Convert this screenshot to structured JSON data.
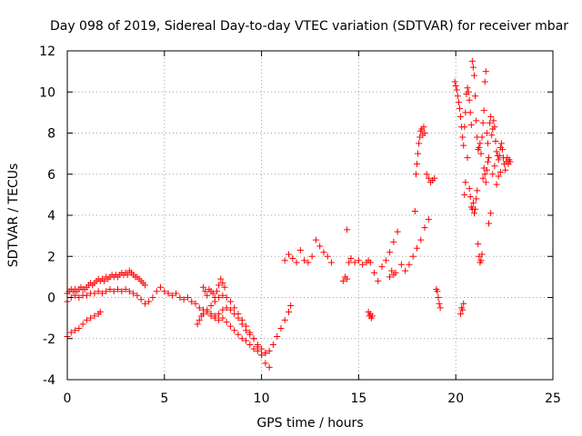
{
  "chart_data": {
    "type": "scatter",
    "title": "Day 098 of 2019, Sidereal Day-to-day VTEC variation (SDTVAR) for receiver mbar",
    "xlabel": "GPS time / hours",
    "ylabel": "SDTVAR / TECUs",
    "xlim": [
      0,
      25
    ],
    "ylim": [
      -4,
      12
    ],
    "xticks": [
      "0",
      "5",
      "10",
      "15",
      "20",
      "25"
    ],
    "yticks": [
      "-4",
      "-2",
      "0",
      "2",
      "4",
      "6",
      "8",
      "10",
      "12"
    ],
    "grid": true,
    "marker": "+",
    "color": "#ff0000",
    "series": [
      {
        "name": "SDTVAR",
        "x": [
          0.0,
          0.1,
          0.2,
          0.3,
          0.4,
          0.5,
          0.6,
          0.7,
          0.8,
          0.9,
          1.0,
          1.1,
          1.2,
          1.3,
          1.4,
          1.5,
          1.6,
          1.7,
          1.8,
          1.9,
          2.0,
          2.1,
          2.2,
          2.3,
          2.4,
          2.5,
          2.6,
          2.7,
          2.8,
          2.9,
          3.0,
          3.1,
          3.2,
          3.3,
          3.4,
          3.5,
          3.6,
          3.7,
          3.8,
          3.9,
          4.0,
          0.0,
          0.2,
          0.4,
          0.6,
          0.8,
          1.0,
          1.2,
          1.4,
          1.6,
          1.8,
          2.0,
          2.2,
          2.4,
          2.6,
          2.8,
          3.0,
          3.2,
          3.4,
          3.6,
          3.8,
          4.0,
          4.2,
          4.4,
          4.6,
          4.8,
          5.0,
          5.2,
          5.4,
          5.6,
          5.8,
          6.0,
          6.2,
          6.4,
          6.6,
          6.8,
          7.0,
          7.2,
          7.4,
          7.6,
          7.8,
          8.0,
          8.2,
          8.4,
          8.6,
          8.8,
          9.0,
          9.2,
          9.4,
          9.6,
          9.8,
          10.0,
          10.2,
          0.0,
          0.2,
          0.4,
          0.6,
          0.8,
          1.0,
          1.2,
          1.4,
          1.6,
          1.7,
          6.7,
          6.8,
          6.9,
          7.0,
          7.2,
          7.4,
          7.6,
          7.8,
          8.0,
          8.2,
          8.4,
          8.6,
          8.8,
          9.0,
          9.2,
          9.4,
          9.6,
          9.8,
          10.0,
          10.2,
          10.4,
          7.4,
          7.6,
          7.8,
          8.0,
          8.2,
          8.4,
          8.6,
          8.8,
          9.0,
          9.2,
          9.4,
          9.6,
          9.8,
          10.0,
          10.2,
          10.4,
          10.6,
          10.8,
          11.0,
          11.2,
          11.4,
          11.5,
          7.0,
          7.1,
          7.2,
          7.3,
          7.4,
          7.5,
          7.6,
          7.7,
          7.8,
          7.9,
          8.0,
          8.1,
          11.2,
          11.4,
          11.6,
          11.8,
          12.0,
          12.2,
          12.4,
          12.6,
          12.8,
          13.0,
          13.2,
          13.4,
          13.6,
          14.2,
          14.3,
          14.4,
          14.5,
          14.6,
          14.8,
          15.0,
          15.2,
          15.4,
          15.5,
          15.6,
          15.8,
          16.0,
          16.2,
          16.4,
          16.6,
          16.8,
          17.0,
          17.2,
          17.4,
          17.6,
          17.8,
          18.0,
          18.2,
          18.4,
          18.6,
          14.4,
          15.5,
          15.55,
          15.6,
          15.65,
          15.7,
          16.6,
          16.7,
          16.8,
          16.9,
          17.9,
          17.95,
          18.0,
          18.05,
          18.1,
          18.15,
          18.2,
          18.25,
          18.3,
          18.35,
          18.4,
          18.5,
          18.6,
          18.7,
          18.8,
          18.9,
          19.0,
          19.05,
          19.1,
          19.15,
          19.2,
          19.95,
          20.0,
          20.05,
          20.1,
          20.15,
          20.2,
          20.25,
          20.3,
          20.35,
          20.4,
          20.45,
          20.5,
          20.55,
          20.6,
          20.65,
          20.7,
          20.75,
          20.8,
          20.85,
          20.9,
          20.95,
          21.0,
          21.05,
          21.1,
          21.15,
          21.2,
          21.25,
          21.3,
          21.35,
          21.4,
          21.45,
          21.5,
          21.55,
          21.6,
          21.65,
          21.7,
          21.75,
          21.8,
          21.85,
          21.9,
          21.95,
          22.0,
          22.05,
          22.1,
          22.15,
          22.2,
          22.25,
          22.3,
          22.35,
          22.4,
          22.45,
          22.5,
          22.55,
          22.6,
          22.65,
          22.7,
          22.75,
          22.8,
          20.25,
          20.3,
          20.35,
          20.4,
          20.45,
          20.5,
          20.6,
          20.7,
          20.75,
          20.8,
          20.85,
          20.9,
          20.95,
          21.0,
          21.05,
          21.1,
          21.15,
          21.2,
          21.25,
          21.3,
          21.35,
          21.4,
          21.45,
          21.5,
          21.55,
          21.6,
          21.65,
          21.7,
          21.8,
          21.9,
          22.0,
          22.1,
          22.2,
          22.3
        ],
        "y": [
          0.2,
          0.3,
          0.4,
          0.3,
          0.4,
          0.3,
          0.4,
          0.5,
          0.4,
          0.4,
          0.5,
          0.6,
          0.7,
          0.6,
          0.7,
          0.8,
          0.9,
          0.8,
          0.9,
          0.8,
          1.0,
          0.9,
          1.0,
          1.1,
          1.0,
          1.1,
          1.0,
          1.1,
          1.2,
          1.1,
          1.2,
          1.1,
          1.3,
          1.2,
          1.1,
          1.0,
          1.0,
          0.9,
          0.8,
          0.7,
          0.6,
          -0.2,
          0.0,
          0.1,
          0.0,
          0.1,
          0.1,
          0.2,
          0.2,
          0.3,
          0.2,
          0.3,
          0.4,
          0.3,
          0.4,
          0.3,
          0.4,
          0.3,
          0.2,
          0.1,
          -0.1,
          -0.3,
          -0.2,
          0.0,
          0.3,
          0.5,
          0.3,
          0.2,
          0.1,
          0.2,
          0.0,
          -0.1,
          0.0,
          -0.2,
          -0.3,
          -0.5,
          -0.6,
          -0.7,
          -0.8,
          -0.9,
          -0.8,
          -0.6,
          -0.5,
          -0.6,
          -0.8,
          -1.0,
          -1.3,
          -1.6,
          -1.8,
          -2.0,
          -2.3,
          -2.5,
          -2.7,
          -1.9,
          -1.7,
          -1.6,
          -1.5,
          -1.3,
          -1.1,
          -1.0,
          -0.9,
          -0.8,
          -0.7,
          -1.3,
          -1.1,
          -0.9,
          -0.8,
          -0.6,
          -0.4,
          -0.2,
          0.0,
          0.1,
          0.0,
          -0.2,
          -0.5,
          -0.8,
          -1.1,
          -1.4,
          -1.7,
          -2.0,
          -2.4,
          -2.8,
          -3.2,
          -3.4,
          -0.9,
          -1.0,
          -1.1,
          -1.0,
          -1.2,
          -1.4,
          -1.6,
          -1.8,
          -2.0,
          -2.1,
          -2.3,
          -2.5,
          -2.6,
          -2.8,
          -2.7,
          -2.6,
          -2.3,
          -1.9,
          -1.5,
          -1.1,
          -0.7,
          -0.4,
          0.5,
          0.3,
          0.1,
          0.4,
          0.3,
          0.2,
          0.0,
          0.3,
          0.6,
          0.9,
          0.7,
          0.5,
          1.8,
          2.1,
          1.9,
          1.7,
          2.3,
          1.8,
          1.7,
          2.0,
          2.8,
          2.5,
          2.2,
          2.0,
          1.7,
          0.8,
          1.0,
          0.9,
          1.7,
          1.9,
          1.7,
          1.8,
          1.6,
          1.7,
          1.8,
          1.7,
          1.2,
          0.8,
          1.5,
          1.8,
          2.2,
          2.7,
          3.2,
          1.6,
          1.3,
          1.6,
          2.0,
          2.4,
          2.8,
          3.4,
          3.8,
          3.3,
          -0.7,
          -0.9,
          -0.8,
          -1.0,
          -0.9,
          1.0,
          1.3,
          1.1,
          1.2,
          4.2,
          6.0,
          6.5,
          7.0,
          7.5,
          7.8,
          8.1,
          8.2,
          7.9,
          8.3,
          8.0,
          6.0,
          5.8,
          5.6,
          5.7,
          5.8,
          0.4,
          0.3,
          0.0,
          -0.3,
          -0.5,
          10.5,
          10.3,
          10.1,
          9.8,
          9.5,
          9.2,
          8.8,
          8.3,
          7.8,
          7.4,
          8.3,
          9.0,
          9.9,
          10.2,
          10.0,
          9.6,
          9.0,
          8.4,
          11.5,
          11.2,
          10.8,
          9.8,
          8.6,
          7.8,
          7.2,
          7.3,
          7.5,
          7.0,
          7.8,
          8.5,
          9.1,
          10.5,
          11.0,
          8.0,
          7.5,
          6.8,
          8.5,
          8.8,
          7.9,
          8.2,
          8.6,
          8.3,
          7.6,
          7.1,
          6.9,
          6.7,
          6.9,
          7.3,
          7.5,
          7.2,
          6.8,
          6.5,
          6.2,
          6.6,
          6.8,
          6.5,
          6.7,
          6.6,
          -0.8,
          -0.5,
          -0.6,
          -0.3,
          5.0,
          5.6,
          6.8,
          5.3,
          4.9,
          4.4,
          4.3,
          4.6,
          4.1,
          4.3,
          4.8,
          5.2,
          2.6,
          2.0,
          1.7,
          1.8,
          2.1,
          5.8,
          6.3,
          6.0,
          5.6,
          6.2,
          6.6,
          3.6,
          4.1,
          6.0,
          6.4,
          5.5,
          5.9,
          6.1
        ]
      }
    ]
  }
}
